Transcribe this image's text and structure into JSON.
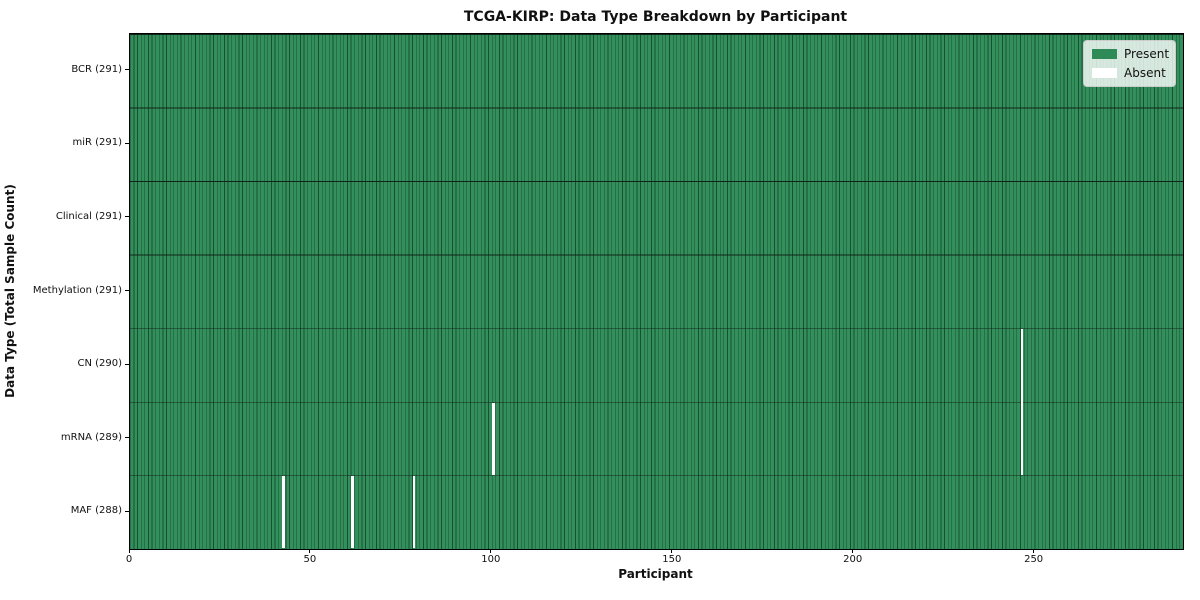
{
  "chart_data": {
    "type": "heatmap",
    "title": "TCGA-KIRP: Data Type Breakdown by Participant",
    "xlabel": "Participant",
    "ylabel": "Data Type (Total Sample Count)",
    "n_participants": 291,
    "x_range": [
      0,
      291
    ],
    "x_ticks": [
      0,
      50,
      100,
      150,
      200,
      250
    ],
    "rows": [
      {
        "label": "BCR (291)",
        "data_type": "BCR",
        "present_count": 291,
        "absent_participants": []
      },
      {
        "label": "miR (291)",
        "data_type": "miR",
        "present_count": 291,
        "absent_participants": []
      },
      {
        "label": "Clinical (291)",
        "data_type": "Clinical",
        "present_count": 291,
        "absent_participants": []
      },
      {
        "label": "Methylation (291)",
        "data_type": "Methylation",
        "present_count": 291,
        "absent_participants": []
      },
      {
        "label": "CN (290)",
        "data_type": "CN",
        "present_count": 290,
        "absent_participants": [
          246
        ]
      },
      {
        "label": "mRNA (289)",
        "data_type": "mRNA",
        "present_count": 289,
        "absent_participants": [
          100,
          246
        ]
      },
      {
        "label": "MAF (288)",
        "data_type": "MAF",
        "present_count": 288,
        "absent_participants": [
          42,
          61,
          78
        ]
      }
    ],
    "legend_items": [
      {
        "label": "Present",
        "color": "#2e8b57"
      },
      {
        "label": "Absent",
        "color": "#ffffff"
      }
    ],
    "legend_position": "upper right",
    "grid": false,
    "colors": {
      "present": "#33905d",
      "absent": "#ffffff",
      "cell_edge": "#17502f",
      "row_line": "#102418",
      "spine": "#000000"
    }
  }
}
